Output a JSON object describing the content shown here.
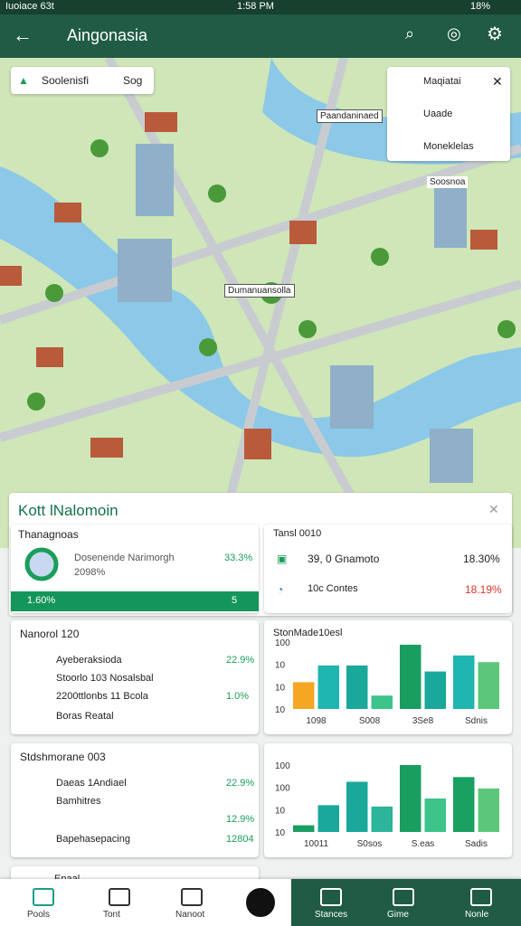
{
  "status": {
    "left": "Iuoiace 63t",
    "time": "1:58 PM",
    "right": "18%"
  },
  "header": {
    "title": "Aingonasia"
  },
  "map": {
    "chip": [
      "Soolenisfi",
      "Sog"
    ],
    "menu": [
      "Maqiatai",
      "Uaade",
      "Moneklelas"
    ],
    "labels": [
      "Paandaninaed",
      "Soosnoa",
      "Dumanuansolla"
    ]
  },
  "panel": {
    "title": "Kott lNalomoin",
    "left": {
      "title": "Thanagnoas",
      "row": "Dosenende Narimorgh",
      "sub": "2098%",
      "value": "33.3%",
      "bar_left": "1.60%",
      "bar_right": "5"
    },
    "right": {
      "title": "Tansl 0010",
      "rows": [
        [
          "39, 0 Gnamoto",
          "18.30%"
        ],
        [
          "10c Contes",
          "18.19%"
        ]
      ]
    }
  },
  "cards": [
    {
      "title": "Nanorol 120",
      "rows": [
        [
          "Ayeberaksioda",
          "22.9%"
        ],
        [
          "Stoorlo 103 Nosalsbal",
          ""
        ],
        [
          "2200ttlonbs 11 Bcola",
          "1.0%"
        ],
        [
          "Boras Reatal",
          ""
        ]
      ]
    },
    {
      "title": "Stdshmorane 003",
      "rows": [
        [
          "Daeas 1Andiael",
          "22.9%"
        ],
        [
          "Bamhitres",
          ""
        ],
        [
          "",
          "12.9%"
        ],
        [
          "Bapehasepacing",
          "12804"
        ]
      ]
    }
  ],
  "charts": [
    {
      "title": "StonMade10esl",
      "axis_texts": [
        "100",
        "10",
        "10",
        "10"
      ],
      "categories": [
        "1098",
        "S008",
        "3Se8",
        "Sdnis"
      ],
      "ylim": [
        0,
        100
      ],
      "groups": [
        {
          "values": [
            40,
            65
          ],
          "colors": [
            "#f5a623",
            "#1fb5b0"
          ]
        },
        {
          "values": [
            65,
            20
          ],
          "colors": [
            "#1aa89a",
            "#3cc48a"
          ]
        },
        {
          "values": [
            96,
            56
          ],
          "colors": [
            "#1a9e60",
            "#1aa89a"
          ]
        },
        {
          "values": [
            80,
            70
          ],
          "colors": [
            "#1fb5b0",
            "#5cc77a"
          ]
        }
      ]
    },
    {
      "axis_texts": [
        "100",
        "100",
        "10",
        "10"
      ],
      "categories": [
        "10011",
        "S0sos",
        "S.eas",
        "Sadis"
      ],
      "ylim": [
        0,
        100
      ],
      "groups": [
        {
          "values": [
            10,
            40
          ],
          "colors": [
            "#1a9e60",
            "#1aa89a"
          ]
        },
        {
          "values": [
            75,
            38
          ],
          "colors": [
            "#1aa89a",
            "#2cb59a"
          ]
        },
        {
          "values": [
            100,
            50
          ],
          "colors": [
            "#1a9e60",
            "#3cc48a"
          ]
        },
        {
          "values": [
            82,
            65
          ],
          "colors": [
            "#1aa060",
            "#5cc77a"
          ]
        }
      ]
    }
  ],
  "partial": "Epaal",
  "nav": [
    "Pools",
    "Tont",
    "Nanoot",
    "Stances",
    "Gime",
    "Nonle"
  ]
}
